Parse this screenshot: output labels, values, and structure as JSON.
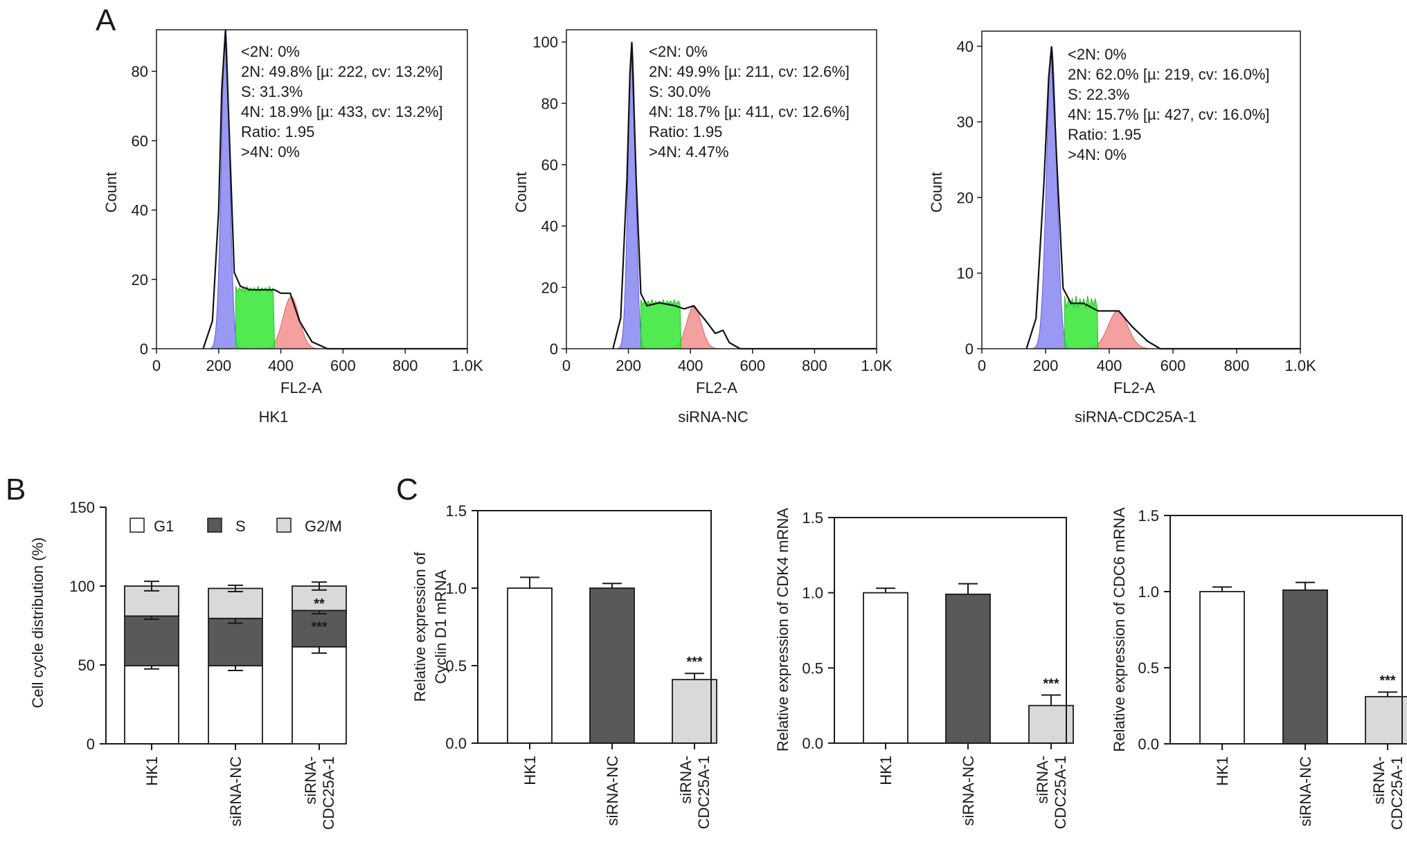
{
  "panels": {
    "a": {
      "label": "A",
      "histograms": [
        {
          "sample_label": "HK1",
          "x_axis_title": "FL2-A",
          "y_axis_title": "Count",
          "x_ticks": [
            "0",
            "200",
            "400",
            "600",
            "800",
            "1.0K"
          ],
          "y_ticks": [
            "0",
            "20",
            "40",
            "60",
            "80"
          ],
          "annotations": [
            "<2N: 0%",
            "2N: 49.8% [µ: 222, cv: 13.2%]",
            "S: 31.3%",
            "4N: 18.9% [µ: 433, cv: 13.2%]",
            "Ratio: 1.95",
            ">4N: 0%"
          ]
        },
        {
          "sample_label": "siRNA-NC",
          "x_axis_title": "FL2-A",
          "y_axis_title": "Count",
          "x_ticks": [
            "0",
            "200",
            "400",
            "600",
            "800",
            "1.0K"
          ],
          "y_ticks": [
            "0",
            "20",
            "40",
            "60",
            "80",
            "100"
          ],
          "annotations": [
            "<2N: 0%",
            "2N: 49.9% [µ: 211, cv: 12.6%]",
            "S: 30.0%",
            "4N: 18.7% [µ: 411, cv: 12.6%]",
            "Ratio: 1.95",
            ">4N: 4.47%"
          ]
        },
        {
          "sample_label": "siRNA-CDC25A-1",
          "x_axis_title": "FL2-A",
          "y_axis_title": "Count",
          "x_ticks": [
            "0",
            "200",
            "400",
            "600",
            "800",
            "1.0K"
          ],
          "y_ticks": [
            "0",
            "10",
            "20",
            "30",
            "40"
          ],
          "annotations": [
            "<2N: 0%",
            "2N: 62.0% [µ: 219, cv: 16.0%]",
            "S: 22.3%",
            "4N: 15.7% [µ: 427, cv: 16.0%]",
            "Ratio: 1.95",
            ">4N: 0%"
          ]
        }
      ]
    },
    "b": {
      "label": "B",
      "y_axis_title": "Cell cycle distribution (%)",
      "y_ticks": [
        "0",
        "50",
        "100",
        "150"
      ],
      "legend": [
        "G1",
        "S",
        "G2/M"
      ],
      "categories": [
        "HK1",
        "siRNA-NC",
        "siRNA-\nCDC25A-1"
      ],
      "stars": [
        "**",
        "***"
      ]
    },
    "c": {
      "label": "C",
      "charts": [
        {
          "y_axis_title_lines": [
            "Relative expression of",
            "Cyclin D1 mRNA"
          ],
          "y_ticks": [
            "0.0",
            "0.5",
            "1.0",
            "1.5"
          ],
          "categories": [
            "HK1",
            "siRNA-NC",
            "siRNA-\nCDC25A-1"
          ],
          "star": "***"
        },
        {
          "y_axis_title_lines": [
            "Relative expression of CDK4 mRNA"
          ],
          "y_ticks": [
            "0.0",
            "0.5",
            "1.0",
            "1.5"
          ],
          "categories": [
            "HK1",
            "siRNA-NC",
            "siRNA-\nCDC25A-1"
          ],
          "star": "***"
        },
        {
          "y_axis_title_lines": [
            "Relative expression of CDC6 mRNA"
          ],
          "y_ticks": [
            "0.0",
            "0.5",
            "1.0",
            "1.5"
          ],
          "categories": [
            "HK1",
            "siRNA-NC",
            "siRNA-\nCDC25A-1"
          ],
          "star": "***"
        }
      ]
    }
  },
  "colors": {
    "axis": "#1a1a1a",
    "g1_peak": "#7f7ff0",
    "s_phase": "#33e633",
    "g2m_peak": "#f08080",
    "bar_white": "#ffffff",
    "bar_dark": "#595959",
    "bar_light": "#d9d9d9"
  },
  "chart_data": [
    {
      "type": "area",
      "title": "HK1",
      "xlabel": "FL2-A",
      "ylabel": "Count",
      "xlim": [
        0,
        1000
      ],
      "ylim": [
        0,
        92
      ],
      "g1_peak": {
        "mean": 222,
        "cv_percent": 13.2,
        "height": 92,
        "percent": 49.8
      },
      "s_phase": {
        "range": [
          255,
          380
        ],
        "level": 17,
        "percent": 31.3
      },
      "g2m_peak": {
        "mean": 433,
        "cv_percent": 13.2,
        "height": 15,
        "percent": 18.9
      },
      "sub_2n_percent": 0,
      "above_4n_percent": 0,
      "ratio": 1.95,
      "curve_x": [
        150,
        180,
        200,
        210,
        222,
        235,
        250,
        270,
        300,
        350,
        380,
        400,
        430,
        460,
        500,
        550,
        600,
        1000
      ],
      "curve_y": [
        0,
        8,
        40,
        75,
        92,
        60,
        22,
        18,
        17,
        17,
        17,
        16,
        16,
        8,
        2,
        0,
        0,
        0
      ]
    },
    {
      "type": "area",
      "title": "siRNA-NC",
      "xlabel": "FL2-A",
      "ylabel": "Count",
      "xlim": [
        0,
        1000
      ],
      "ylim": [
        0,
        104
      ],
      "g1_peak": {
        "mean": 211,
        "cv_percent": 12.6,
        "height": 100,
        "percent": 49.9
      },
      "s_phase": {
        "range": [
          240,
          370
        ],
        "level": 15,
        "percent": 30.0
      },
      "g2m_peak": {
        "mean": 411,
        "cv_percent": 12.6,
        "height": 14,
        "percent": 18.7
      },
      "sub_2n_percent": 0,
      "above_4n_percent": 4.47,
      "ratio": 1.95,
      "curve_x": [
        150,
        175,
        195,
        205,
        211,
        225,
        240,
        260,
        300,
        350,
        380,
        410,
        450,
        480,
        505,
        525,
        560,
        1000
      ],
      "curve_y": [
        0,
        10,
        55,
        90,
        100,
        55,
        18,
        14,
        15,
        14,
        13,
        14,
        9,
        5,
        6,
        2,
        0,
        0
      ]
    },
    {
      "type": "area",
      "title": "siRNA-CDC25A-1",
      "xlabel": "FL2-A",
      "ylabel": "Count",
      "xlim": [
        0,
        1000
      ],
      "ylim": [
        0,
        42
      ],
      "g1_peak": {
        "mean": 219,
        "cv_percent": 16.0,
        "height": 40,
        "percent": 62.0
      },
      "s_phase": {
        "range": [
          260,
          365
        ],
        "level": 6,
        "percent": 22.3
      },
      "g2m_peak": {
        "mean": 427,
        "cv_percent": 16.0,
        "height": 5,
        "percent": 15.7
      },
      "sub_2n_percent": 0,
      "above_4n_percent": 0,
      "ratio": 1.95,
      "curve_x": [
        140,
        170,
        195,
        210,
        219,
        235,
        255,
        280,
        320,
        365,
        400,
        430,
        470,
        520,
        560,
        1000
      ],
      "curve_y": [
        0,
        4,
        22,
        36,
        40,
        25,
        8,
        6,
        6,
        5,
        5,
        5,
        3,
        1,
        0,
        0
      ]
    },
    {
      "type": "bar",
      "stacked": true,
      "title": "",
      "xlabel": "",
      "ylabel": "Cell cycle distribution (%)",
      "ylim": [
        0,
        150
      ],
      "categories": [
        "HK1",
        "siRNA-NC",
        "siRNA-CDC25A-1"
      ],
      "series": [
        {
          "name": "G1",
          "values": [
            49.5,
            49.5,
            61.5
          ],
          "errors": [
            2,
            3,
            4
          ]
        },
        {
          "name": "S",
          "values": [
            31.5,
            30,
            23
          ],
          "errors": [
            2,
            3,
            2
          ]
        },
        {
          "name": "G2/M",
          "values": [
            19,
            19,
            15.5
          ],
          "errors": [
            3,
            2,
            2.5
          ]
        }
      ],
      "annotations": [
        {
          "category": "siRNA-CDC25A-1",
          "series": "S",
          "text": "***"
        },
        {
          "category": "siRNA-CDC25A-1",
          "series": "G2/M",
          "text": "**"
        }
      ]
    },
    {
      "type": "bar",
      "title": "",
      "xlabel": "",
      "ylabel": "Relative expression of Cyclin D1 mRNA",
      "ylim": [
        0,
        1.5
      ],
      "categories": [
        "HK1",
        "siRNA-NC",
        "siRNA-CDC25A-1"
      ],
      "values": [
        1.0,
        1.0,
        0.41
      ],
      "errors": [
        0.07,
        0.03,
        0.04
      ],
      "annotations": [
        {
          "category": "siRNA-CDC25A-1",
          "text": "***"
        }
      ]
    },
    {
      "type": "bar",
      "title": "",
      "xlabel": "",
      "ylabel": "Relative expression of CDK4 mRNA",
      "ylim": [
        0,
        1.5
      ],
      "categories": [
        "HK1",
        "siRNA-NC",
        "siRNA-CDC25A-1"
      ],
      "values": [
        1.0,
        0.99,
        0.25
      ],
      "errors": [
        0.03,
        0.07,
        0.07
      ],
      "annotations": [
        {
          "category": "siRNA-CDC25A-1",
          "text": "***"
        }
      ]
    },
    {
      "type": "bar",
      "title": "",
      "xlabel": "",
      "ylabel": "Relative expression of CDC6 mRNA",
      "ylim": [
        0,
        1.5
      ],
      "categories": [
        "HK1",
        "siRNA-NC",
        "siRNA-CDC25A-1"
      ],
      "values": [
        1.0,
        1.01,
        0.31
      ],
      "errors": [
        0.03,
        0.05,
        0.03
      ],
      "annotations": [
        {
          "category": "siRNA-CDC25A-1",
          "text": "***"
        }
      ]
    }
  ]
}
